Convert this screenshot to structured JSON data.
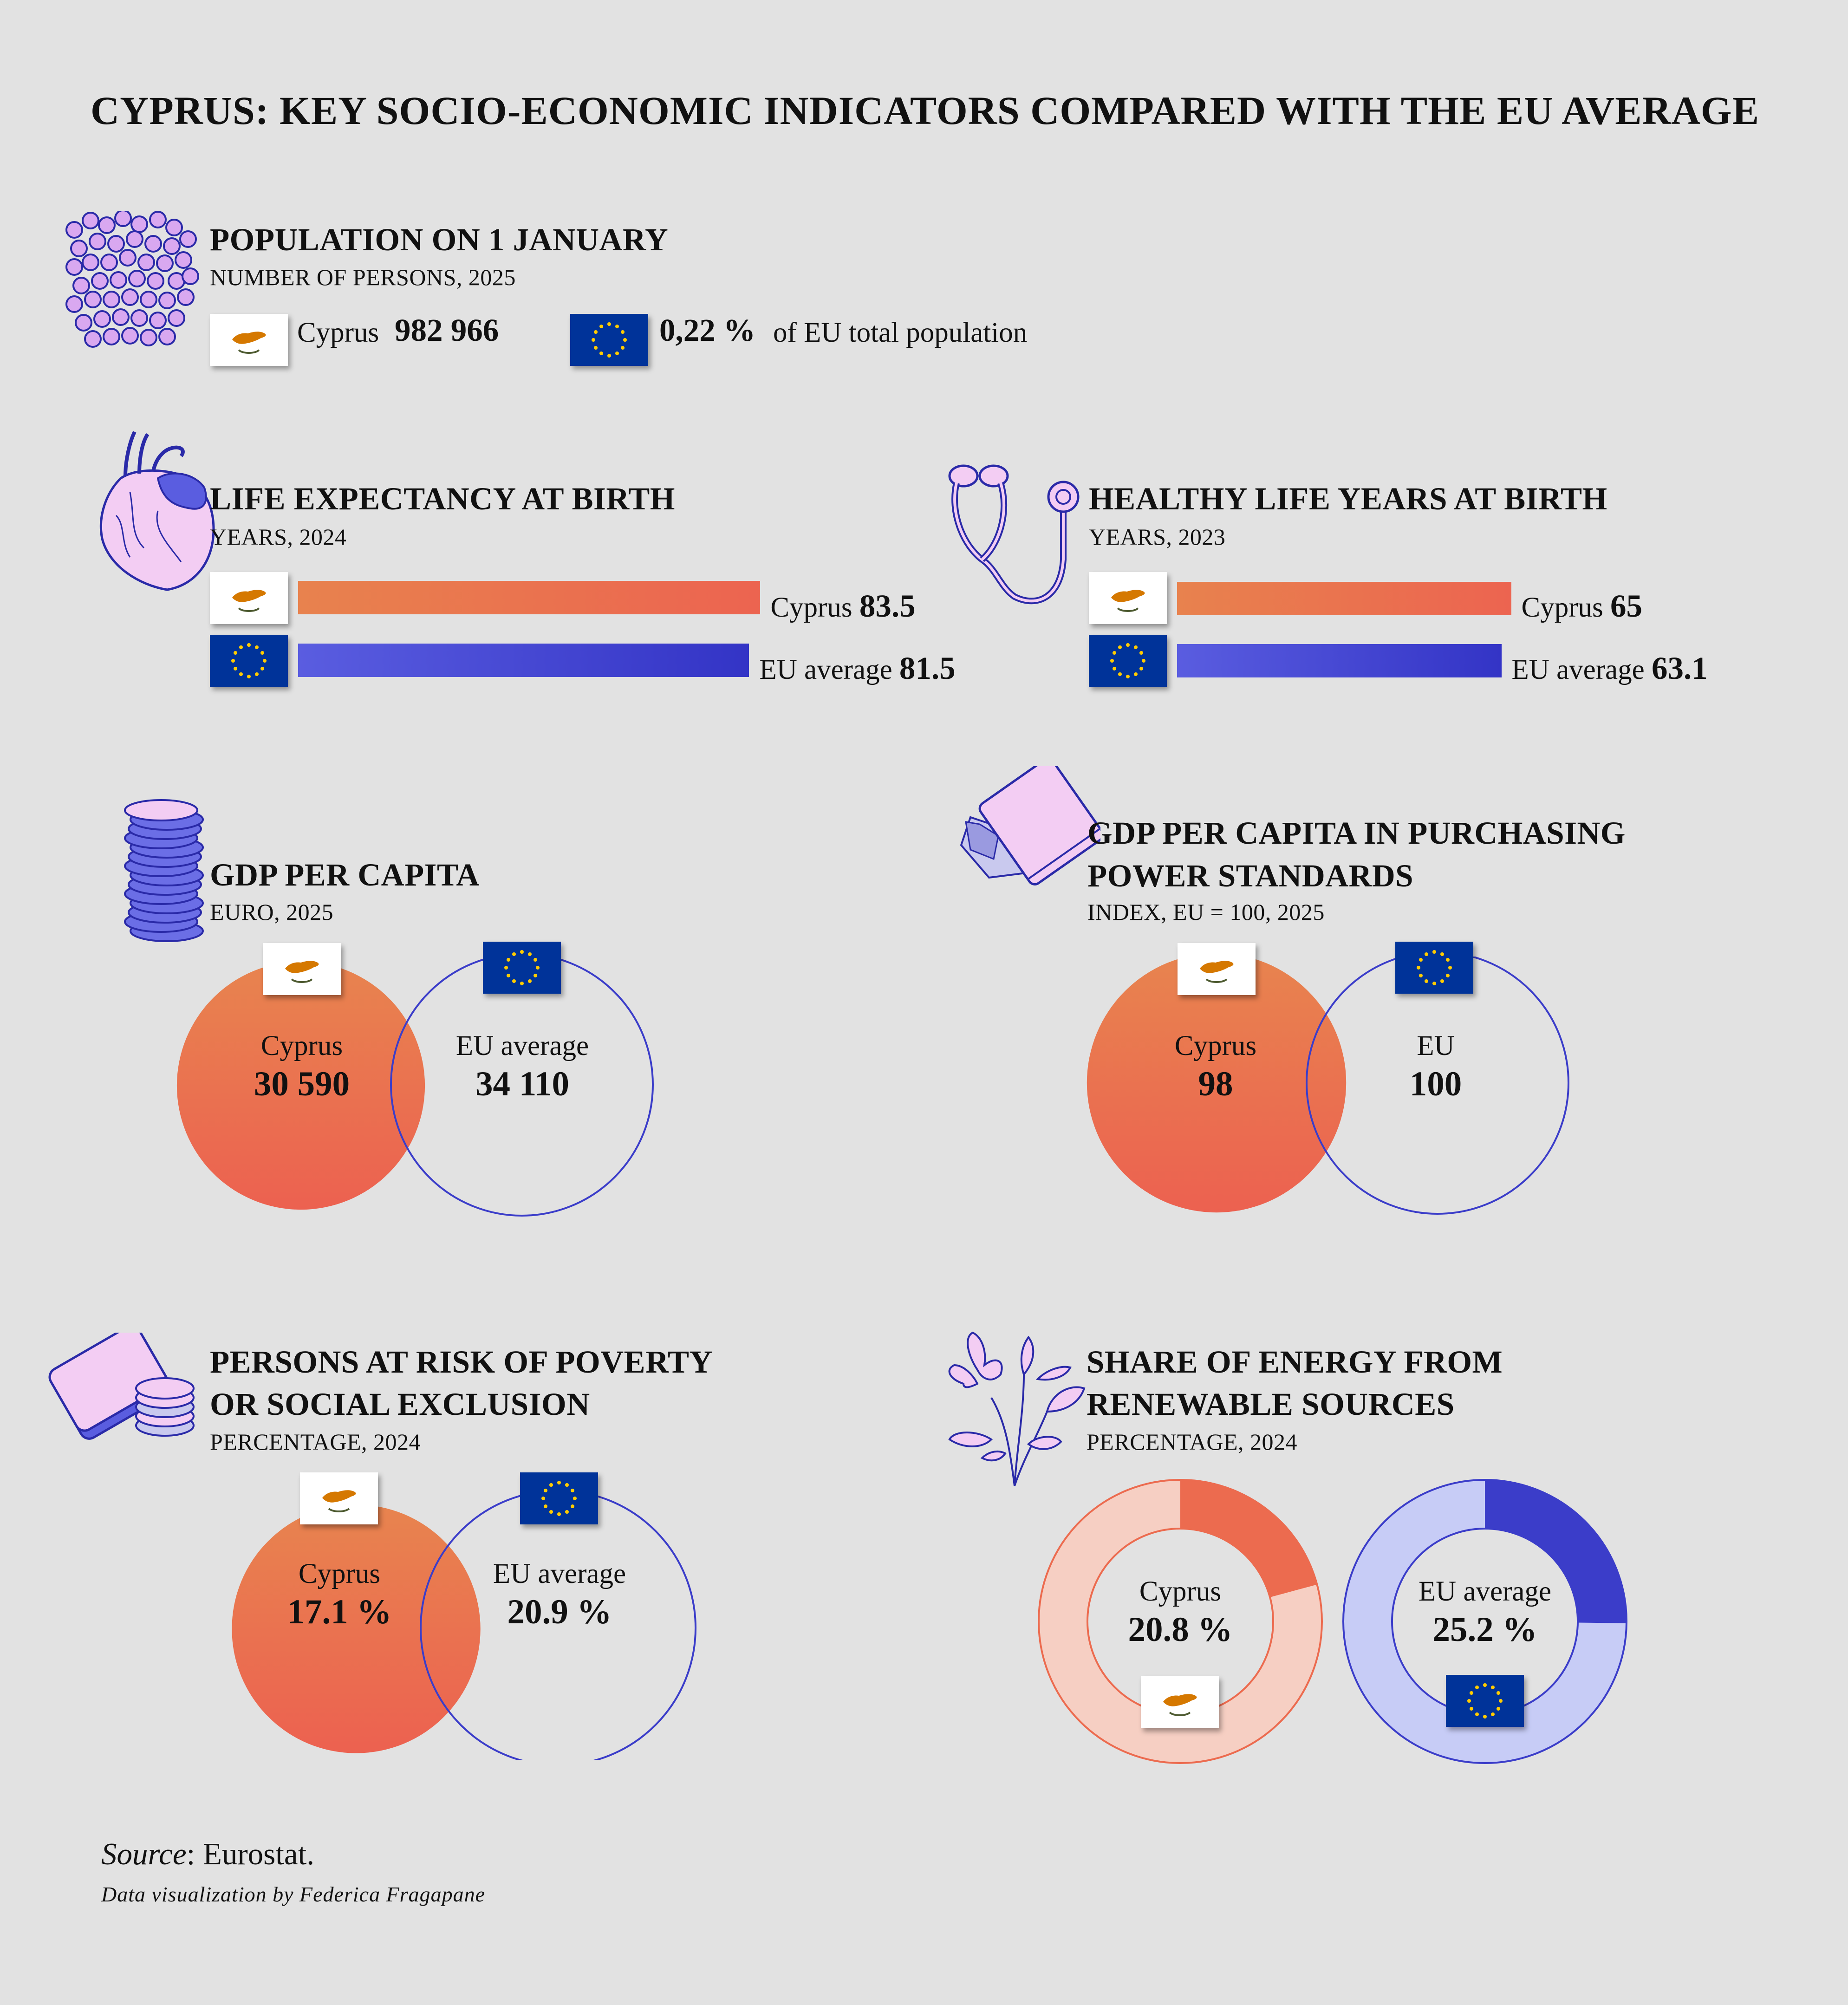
{
  "title": "CYPRUS: KEY SOCIO-ECONOMIC INDICATORS COMPARED WITH THE EU AVERAGE",
  "icons": [
    "population-dots-icon",
    "heart-icon",
    "stethoscope-icon",
    "coin-stack-icon",
    "wallet-cash-icon",
    "wallet-coins-icon",
    "flower-plant-icon",
    "cyprus-flag-icon",
    "eu-flag-icon"
  ],
  "colors": {
    "cyprus": "#ec6b4f",
    "cyprus_light": "#f6cfc3",
    "eu": "#3b3dc9",
    "eu_light": "#c7ccf6",
    "background": "#e2e2e2"
  },
  "population": {
    "title": "POPULATION ON 1 JANUARY",
    "subtitle": "NUMBER OF PERSONS, 2025",
    "cy_label": "Cyprus",
    "cy_value": "982 966",
    "eu_value": "0,22 %",
    "eu_text": "of EU total population"
  },
  "life_expectancy": {
    "title": "LIFE EXPECTANCY AT BIRTH",
    "subtitle": "YEARS, 2024",
    "cy_label": "Cyprus",
    "cy_value": "83.5",
    "eu_label": "EU average",
    "eu_value": "81.5"
  },
  "healthy_life": {
    "title": "HEALTHY LIFE YEARS AT BIRTH",
    "subtitle": "YEARS, 2023",
    "cy_label": "Cyprus",
    "cy_value": "65",
    "eu_label": "EU average",
    "eu_value": "63.1"
  },
  "gdp": {
    "title": "GDP PER CAPITA",
    "subtitle": "EURO, 2025",
    "cy_label": "Cyprus",
    "cy_value": "30 590",
    "eu_label": "EU average",
    "eu_value": "34 110"
  },
  "gdp_pps": {
    "title_line1": "GDP PER CAPITA IN PURCHASING",
    "title_line2": "POWER STANDARDS",
    "subtitle": "INDEX, EU = 100, 2025",
    "cy_label": "Cyprus",
    "cy_value": "98",
    "eu_label": "EU",
    "eu_value": "100"
  },
  "poverty": {
    "title_line1": "PERSONS AT RISK OF POVERTY",
    "title_line2": "OR SOCIAL EXCLUSION",
    "subtitle": "PERCENTAGE, 2024",
    "cy_label": "Cyprus",
    "cy_value": "17.1 %",
    "eu_label": "EU average",
    "eu_value": "20.9 %"
  },
  "renewables": {
    "title_line1": "SHARE OF ENERGY FROM",
    "title_line2": "RENEWABLE SOURCES",
    "subtitle": "PERCENTAGE, 2024",
    "cy_label": "Cyprus",
    "cy_value": "20.8 %",
    "eu_label": "EU average",
    "eu_value": "25.2 %"
  },
  "source_label": "Source",
  "source_text": ": Eurostat.",
  "credit": "Data visualization by Federica Fragapane",
  "chart_data": [
    {
      "type": "bar",
      "title": "LIFE EXPECTANCY AT BIRTH",
      "subtitle": "YEARS, 2024",
      "categories": [
        "Cyprus",
        "EU average"
      ],
      "values": [
        83.5,
        81.5
      ]
    },
    {
      "type": "bar",
      "title": "HEALTHY LIFE YEARS AT BIRTH",
      "subtitle": "YEARS, 2023",
      "categories": [
        "Cyprus",
        "EU average"
      ],
      "values": [
        65,
        63.1
      ]
    },
    {
      "type": "bubble",
      "title": "GDP PER CAPITA",
      "subtitle": "EURO, 2025",
      "categories": [
        "Cyprus",
        "EU average"
      ],
      "values": [
        30590,
        34110
      ]
    },
    {
      "type": "bubble",
      "title": "GDP PER CAPITA IN PURCHASING POWER STANDARDS",
      "subtitle": "INDEX, EU = 100, 2025",
      "categories": [
        "Cyprus",
        "EU"
      ],
      "values": [
        98,
        100
      ]
    },
    {
      "type": "bubble",
      "title": "PERSONS AT RISK OF POVERTY OR SOCIAL EXCLUSION",
      "subtitle": "PERCENTAGE, 2024",
      "categories": [
        "Cyprus",
        "EU average"
      ],
      "values": [
        17.1,
        20.9
      ]
    },
    {
      "type": "pie",
      "title": "SHARE OF ENERGY FROM RENEWABLE SOURCES",
      "subtitle": "PERCENTAGE, 2024",
      "categories": [
        "Cyprus",
        "EU average"
      ],
      "values": [
        20.8,
        25.2
      ]
    }
  ]
}
